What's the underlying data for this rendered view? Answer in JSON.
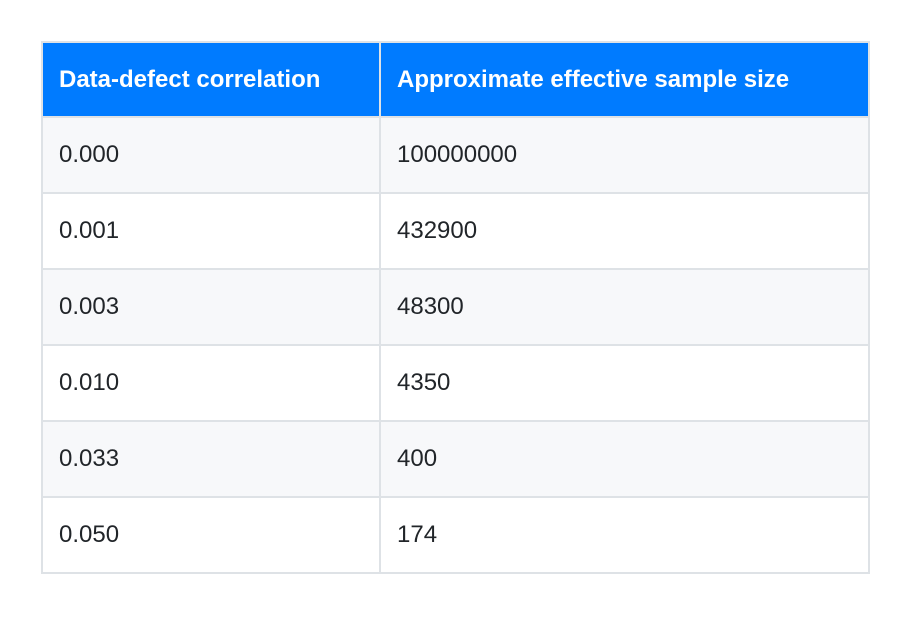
{
  "table": {
    "header": [
      "Data-defect correlation",
      "Approximate effective sample size"
    ],
    "rows": [
      [
        "0.000",
        "100000000"
      ],
      [
        "0.001",
        "432900"
      ],
      [
        "0.003",
        "48300"
      ],
      [
        "0.010",
        "4350"
      ],
      [
        "0.033",
        "400"
      ],
      [
        "0.050",
        "174"
      ]
    ]
  }
}
